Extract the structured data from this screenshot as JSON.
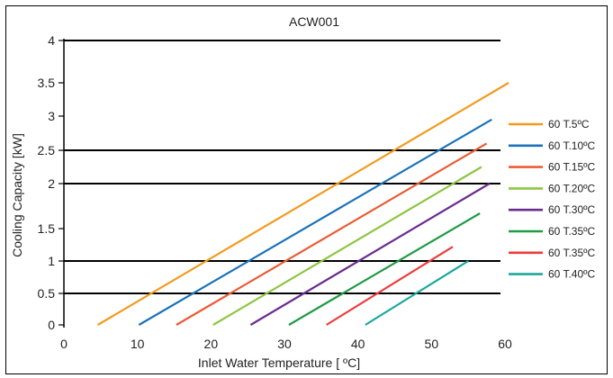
{
  "chart_data": {
    "type": "line",
    "title": "ACW001",
    "xlabel": "Inlet Water Temperature [ ºC]",
    "ylabel": "Cooling Capacity [kW]",
    "xlim": [
      0,
      60
    ],
    "ylim": [
      0,
      4
    ],
    "x_ticks": [
      0,
      10,
      20,
      30,
      40,
      50,
      60
    ],
    "x_tick_labels": [
      "0",
      "10",
      "20",
      "30",
      "40",
      "50",
      "60"
    ],
    "y_ticks": [
      0,
      0.5,
      1,
      1.5,
      2,
      2.5,
      3,
      3.5,
      4
    ],
    "y_tick_labels": [
      "0",
      "0.5",
      "1",
      "1.5",
      "2",
      "2.5",
      "3",
      "3.5",
      "4"
    ],
    "y_scale": "nonlinear (tick spacing as printed)",
    "grid_lines_y": [
      0.5,
      1,
      2,
      2.5,
      4
    ],
    "legend_position": "right",
    "series": [
      {
        "name": "60 T.5ºC",
        "color": "#F39A1E",
        "x": [
          4.6,
          60.5
        ],
        "y": [
          0,
          3.5
        ]
      },
      {
        "name": "60 T.10ºC",
        "color": "#1B72B8",
        "x": [
          10.2,
          58.2
        ],
        "y": [
          0,
          2.95
        ]
      },
      {
        "name": "60 T.15ºC",
        "color": "#EB5B34",
        "x": [
          15.3,
          57.5
        ],
        "y": [
          0,
          2.6
        ]
      },
      {
        "name": "60 T.20ºC",
        "color": "#8CC63F",
        "x": [
          20.3,
          56.8
        ],
        "y": [
          0,
          2.25
        ]
      },
      {
        "name": "60 T.30ºC",
        "color": "#6B2C91",
        "x": [
          25.4,
          57.9
        ],
        "y": [
          0,
          2.0
        ]
      },
      {
        "name": "60 T.35ºC",
        "color": "#1E9B45",
        "x": [
          30.6,
          56.6
        ],
        "y": [
          0,
          1.67
        ]
      },
      {
        "name": "60 T.35ºC",
        "color": "#EE3B3B",
        "x": [
          35.7,
          52.9
        ],
        "y": [
          0,
          1.22
        ]
      },
      {
        "name": "60 T.40ºC",
        "color": "#1BA89C",
        "x": [
          41.0,
          55.0
        ],
        "y": [
          0,
          1.0
        ]
      }
    ]
  }
}
